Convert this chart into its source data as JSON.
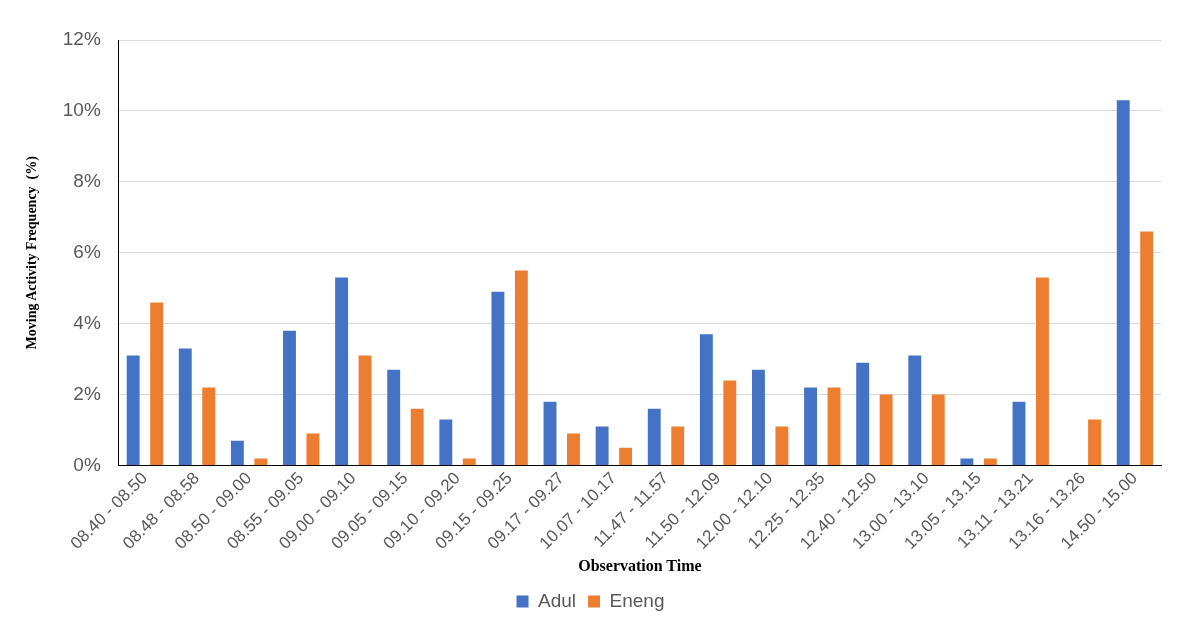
{
  "chart_data": {
    "type": "bar",
    "xlabel": "Observation Time",
    "ylabel": "Moving Activity Frequency  (%)",
    "categories": [
      "08.40 - 08.50",
      "08.48 - 08.58",
      "08.50 - 09.00",
      "08.55 - 09.05",
      "09.00 - 09.10",
      "09.05 - 09.15",
      "09.10 - 09.20",
      "09.15 - 09.25",
      "09.17 - 09.27",
      "10.07 - 10.17",
      "11.47 - 11.57",
      "11.50 - 12.09",
      "12.00 - 12.10",
      "12.25 - 12.35",
      "12.40 - 12.50",
      "13.00 - 13.10",
      "13.05 - 13.15",
      "13.11 - 13.21",
      "13.16 - 13.26",
      "14.50 - 15.00"
    ],
    "series": [
      {
        "name": "Adul",
        "color": "#4472c4",
        "values": [
          3.1,
          3.3,
          0.7,
          3.8,
          5.3,
          2.7,
          1.3,
          4.9,
          1.8,
          1.1,
          1.6,
          3.7,
          2.7,
          2.2,
          2.9,
          3.1,
          0.2,
          1.8,
          0,
          10.3
        ]
      },
      {
        "name": "Eneng",
        "color": "#ed7d31",
        "values": [
          4.6,
          2.2,
          0.2,
          0.9,
          3.1,
          1.6,
          0.2,
          5.5,
          0.9,
          0.5,
          1.1,
          2.4,
          1.1,
          2.2,
          2.0,
          2.0,
          0.2,
          5.3,
          1.3,
          6.6
        ]
      }
    ],
    "ylim": [
      0,
      12
    ],
    "yticks": [
      {
        "value": 0,
        "label": "0%"
      },
      {
        "value": 2,
        "label": "2%"
      },
      {
        "value": 4,
        "label": "4%"
      },
      {
        "value": 6,
        "label": "6%"
      },
      {
        "value": 8,
        "label": "8%"
      },
      {
        "value": 10,
        "label": "10%"
      },
      {
        "value": 12,
        "label": "12%"
      }
    ],
    "grid": "y",
    "legend": "bottom"
  }
}
